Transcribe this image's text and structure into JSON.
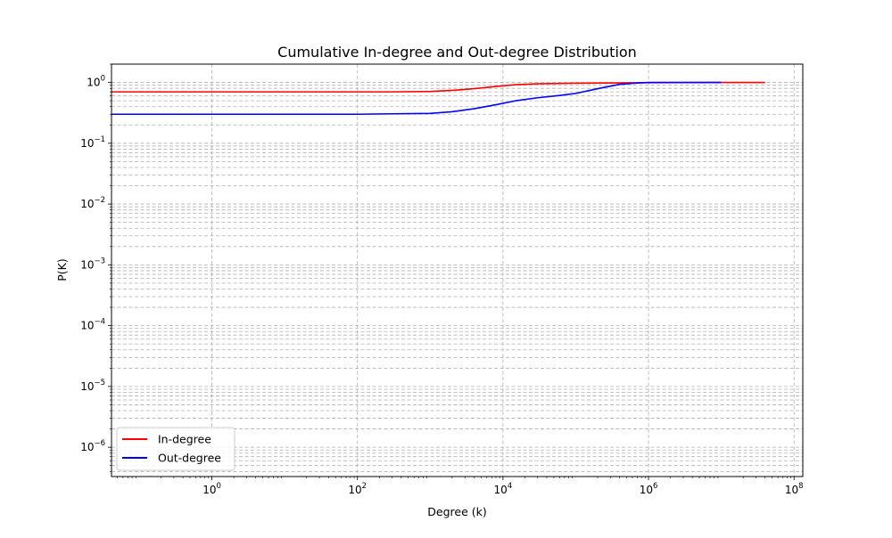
{
  "chart_data": {
    "type": "line",
    "title": "Cumulative In-degree and Out-degree Distribution",
    "xlabel": "Degree (k)",
    "ylabel": "P(K)",
    "xscale": "log",
    "yscale": "log",
    "xlim": [
      0.0417,
      131825673
    ],
    "ylim": [
      3.3e-07,
      2.0
    ],
    "x_tick_labels": [
      {
        "value": 1,
        "base": "10",
        "exp": "0"
      },
      {
        "value": 100,
        "base": "10",
        "exp": "2"
      },
      {
        "value": 10000,
        "base": "10",
        "exp": "4"
      },
      {
        "value": 1000000,
        "base": "10",
        "exp": "6"
      },
      {
        "value": 100000000,
        "base": "10",
        "exp": "8"
      }
    ],
    "y_tick_labels": [
      {
        "value": 1,
        "base": "10",
        "exp": "0"
      },
      {
        "value": 0.1,
        "base": "10",
        "exp": "−1"
      },
      {
        "value": 0.01,
        "base": "10",
        "exp": "−2"
      },
      {
        "value": 0.001,
        "base": "10",
        "exp": "−3"
      },
      {
        "value": 0.0001,
        "base": "10",
        "exp": "−4"
      },
      {
        "value": 1e-05,
        "base": "10",
        "exp": "−5"
      },
      {
        "value": 1e-06,
        "base": "10",
        "exp": "−6"
      }
    ],
    "grid": {
      "x": true,
      "y": true,
      "y_minor": true,
      "style": "dashed"
    },
    "legend_position": "lower-left",
    "series": [
      {
        "name": "In-degree",
        "color": "#ff0000",
        "x": [
          0.0417,
          1,
          10,
          100,
          300,
          1000,
          2000,
          4000,
          8000,
          15000,
          30000,
          100000,
          1000000,
          10000000,
          40000000
        ],
        "y": [
          0.7,
          0.7,
          0.7,
          0.7,
          0.7,
          0.71,
          0.74,
          0.79,
          0.86,
          0.92,
          0.95,
          0.97,
          0.99,
          1.0,
          1.0
        ]
      },
      {
        "name": "Out-degree",
        "color": "#0000ff",
        "x": [
          0.0417,
          1,
          10,
          100,
          300,
          1000,
          2000,
          4000,
          8000,
          15000,
          30000,
          60000,
          100000,
          200000,
          400000,
          700000,
          1000000,
          10000000
        ],
        "y": [
          0.3,
          0.3,
          0.3,
          0.3,
          0.305,
          0.31,
          0.33,
          0.37,
          0.43,
          0.5,
          0.56,
          0.61,
          0.66,
          0.79,
          0.93,
          0.98,
          1.0,
          1.0
        ]
      }
    ]
  }
}
